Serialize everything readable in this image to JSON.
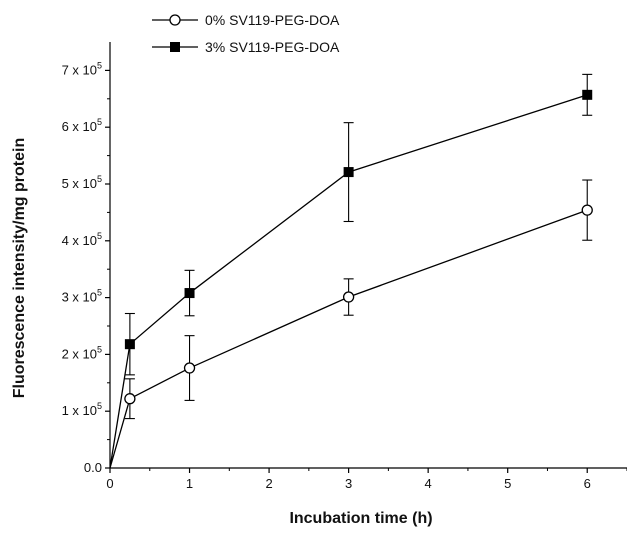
{
  "chart_data": {
    "type": "line",
    "xlabel": "Incubation time (h)",
    "ylabel": "Fluorescence intensity/mg protein",
    "xlim": [
      0,
      6.5
    ],
    "ylim": [
      0,
      750000
    ],
    "x_ticks": [
      0,
      1,
      2,
      3,
      4,
      5,
      6
    ],
    "x_tick_labels": [
      "0",
      "1",
      "2",
      "3",
      "4",
      "5",
      "6"
    ],
    "y_ticks": [
      0,
      100000,
      200000,
      300000,
      400000,
      500000,
      600000,
      700000
    ],
    "y_tick_labels": [
      {
        "base": "0.0",
        "exp": ""
      },
      {
        "base": "1 x 10",
        "exp": "5"
      },
      {
        "base": "2 x 10",
        "exp": "5"
      },
      {
        "base": "3 x 10",
        "exp": "5"
      },
      {
        "base": "4 x 10",
        "exp": "5"
      },
      {
        "base": "5 x 10",
        "exp": "5"
      },
      {
        "base": "6 x 10",
        "exp": "5"
      },
      {
        "base": "7 x 10",
        "exp": "5"
      }
    ],
    "grid": false,
    "legend_position": "top-left",
    "series": [
      {
        "name": "0% SV119-PEG-DOA",
        "marker": "open-circle",
        "color": "#000000",
        "x": [
          0,
          0.25,
          1,
          3,
          6
        ],
        "y": [
          0,
          122000,
          176000,
          301000,
          454000
        ],
        "err": [
          0,
          35000,
          57000,
          32000,
          53000
        ]
      },
      {
        "name": "3% SV119-PEG-DOA",
        "marker": "filled-square",
        "color": "#000000",
        "x": [
          0,
          0.25,
          1,
          3,
          6
        ],
        "y": [
          0,
          218000,
          308000,
          521000,
          657000
        ],
        "err": [
          0,
          54000,
          40000,
          87000,
          36000
        ]
      }
    ]
  }
}
